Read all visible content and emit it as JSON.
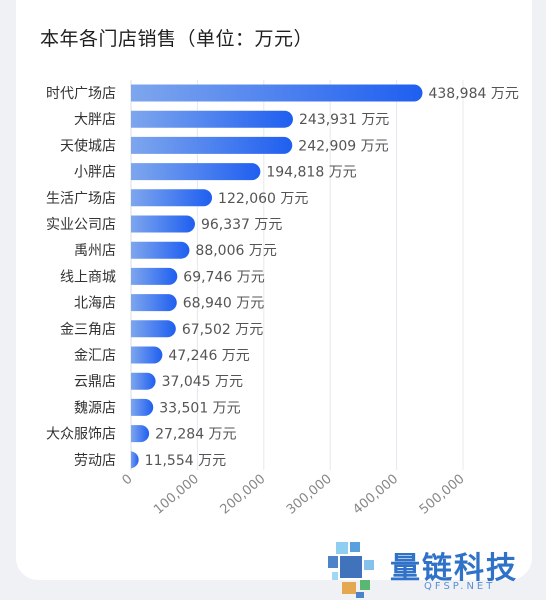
{
  "chart_data": {
    "type": "bar",
    "orientation": "horizontal",
    "title": "本年各门店销售（单位：万元）",
    "unit": "万元",
    "categories": [
      "时代广场店",
      "大胖店",
      "天使城店",
      "小胖店",
      "生活广场店",
      "实业公司店",
      "禹州店",
      "线上商城",
      "北海店",
      "金三角店",
      "金汇店",
      "云鼎店",
      "魏源店",
      "大众服饰店",
      "劳动店"
    ],
    "values": [
      438984,
      243931,
      242909,
      194818,
      122060,
      96337,
      88006,
      69746,
      68940,
      67502,
      47246,
      37045,
      33501,
      27284,
      11554
    ],
    "value_labels": [
      "438,984 万元",
      "243,931 万元",
      "242,909 万元",
      "194,818 万元",
      "122,060 万元",
      "96,337 万元",
      "88,006 万元",
      "69,746 万元",
      "68,940 万元",
      "67,502 万元",
      "47,246 万元",
      "37,045 万元",
      "33,501 万元",
      "27,284 万元",
      "11,554 万元"
    ],
    "xlim": [
      0,
      500000
    ],
    "xticks": [
      "0",
      "100,000",
      "200,000",
      "300,000",
      "400,000",
      "500,000"
    ],
    "grid": "vertical",
    "bar_gradient": [
      "#7ea6ee",
      "#1f5ff0"
    ]
  },
  "watermark": {
    "name": "量链科技",
    "domain": "QFSP.NET"
  }
}
